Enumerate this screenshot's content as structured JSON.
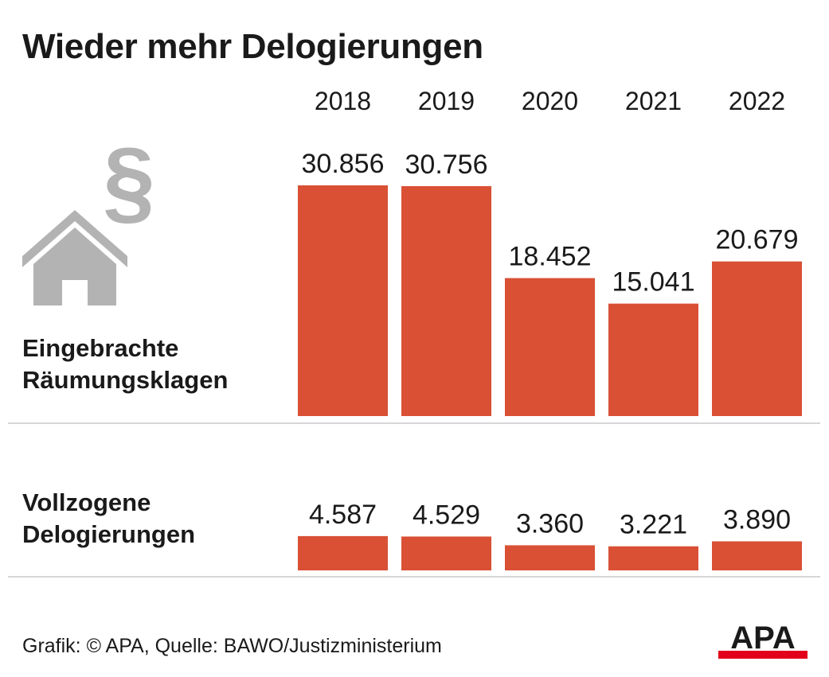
{
  "title": "Wieder mehr Delogierungen",
  "footer": "Grafik: © APA, Quelle: BAWO/Justizministerium",
  "logo_text": "APA",
  "colors": {
    "bar": "#d95035",
    "text": "#1a1a1a",
    "icon": "#b3b3b3",
    "divider": "#d6d6d6",
    "logo_bar": "#e2001a"
  },
  "icons": {
    "paragraph": "paragraph-icon",
    "house": "house-icon"
  },
  "chart_data": {
    "type": "bar",
    "categories": [
      "2018",
      "2019",
      "2020",
      "2021",
      "2022"
    ],
    "series": [
      {
        "name": "Eingebrachte Räumungsklagen",
        "name_lines": [
          "Eingebrachte",
          "Räumungsklagen"
        ],
        "values": [
          30856,
          30756,
          18452,
          15041,
          20679
        ],
        "labels": [
          "30.856",
          "30.756",
          "18.452",
          "15.041",
          "20.679"
        ]
      },
      {
        "name": "Vollzogene Delogierungen",
        "name_lines": [
          "Vollzogene",
          "Delogierungen"
        ],
        "values": [
          4587,
          4529,
          3360,
          3221,
          3890
        ],
        "labels": [
          "4.587",
          "4.529",
          "3.360",
          "3.221",
          "3.890"
        ]
      }
    ]
  }
}
